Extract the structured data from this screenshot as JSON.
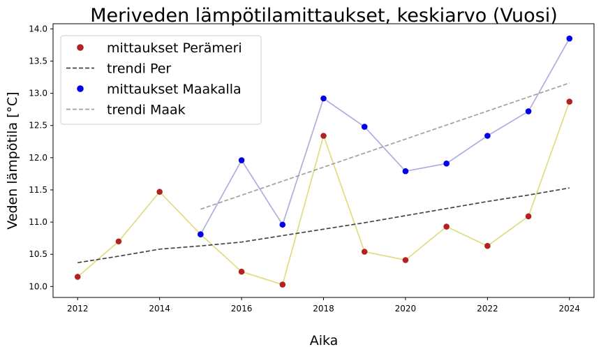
{
  "chart_data": {
    "type": "scatter",
    "title": "Meriveden lämpötilamittaukset, keskiarvo (Vuosi)",
    "xlabel": "Aika",
    "ylabel": "Veden lämpötila [°C]",
    "xlim": [
      2011.4,
      2024.6
    ],
    "ylim": [
      9.83,
      14.08
    ],
    "xticks": [
      2012,
      2014,
      2016,
      2018,
      2020,
      2022,
      2024
    ],
    "yticks": [
      10.0,
      10.5,
      11.0,
      11.5,
      12.0,
      12.5,
      13.0,
      13.5,
      14.0
    ],
    "grid": false,
    "legend_position": "top-left",
    "series": [
      {
        "name": "mittaukset Perämeri",
        "kind": "scatter-with-line",
        "marker_color": "#b22222",
        "line_color": "#e0dc80",
        "x": [
          2012,
          2013,
          2014,
          2015,
          2016,
          2017,
          2018,
          2019,
          2020,
          2021,
          2022,
          2023,
          2024
        ],
        "y": [
          10.15,
          10.7,
          11.47,
          10.81,
          10.23,
          10.03,
          12.34,
          10.54,
          10.41,
          10.93,
          10.63,
          11.09,
          12.87
        ]
      },
      {
        "name": "trendi Per",
        "kind": "trend",
        "line_color": "#444444",
        "x": [
          2012,
          2013,
          2014,
          2015,
          2016,
          2017,
          2018,
          2019,
          2020,
          2021,
          2022,
          2023,
          2024
        ],
        "y": [
          10.37,
          10.47,
          10.58,
          10.63,
          10.69,
          10.79,
          10.89,
          10.99,
          11.1,
          11.21,
          11.32,
          11.42,
          11.53
        ]
      },
      {
        "name": "mittaukset Maakalla",
        "kind": "scatter-with-line",
        "marker_color": "#0000ee",
        "line_color": "#b0acdf",
        "x": [
          2015,
          2016,
          2017,
          2018,
          2019,
          2020,
          2021,
          2022,
          2023,
          2024
        ],
        "y": [
          10.81,
          11.96,
          10.96,
          12.92,
          12.48,
          11.79,
          11.91,
          12.34,
          12.72,
          13.85
        ]
      },
      {
        "name": "trendi Maak",
        "kind": "trend",
        "line_color": "#a0a0a0",
        "x": [
          2015,
          2024
        ],
        "y": [
          11.2,
          13.16
        ]
      }
    ]
  }
}
